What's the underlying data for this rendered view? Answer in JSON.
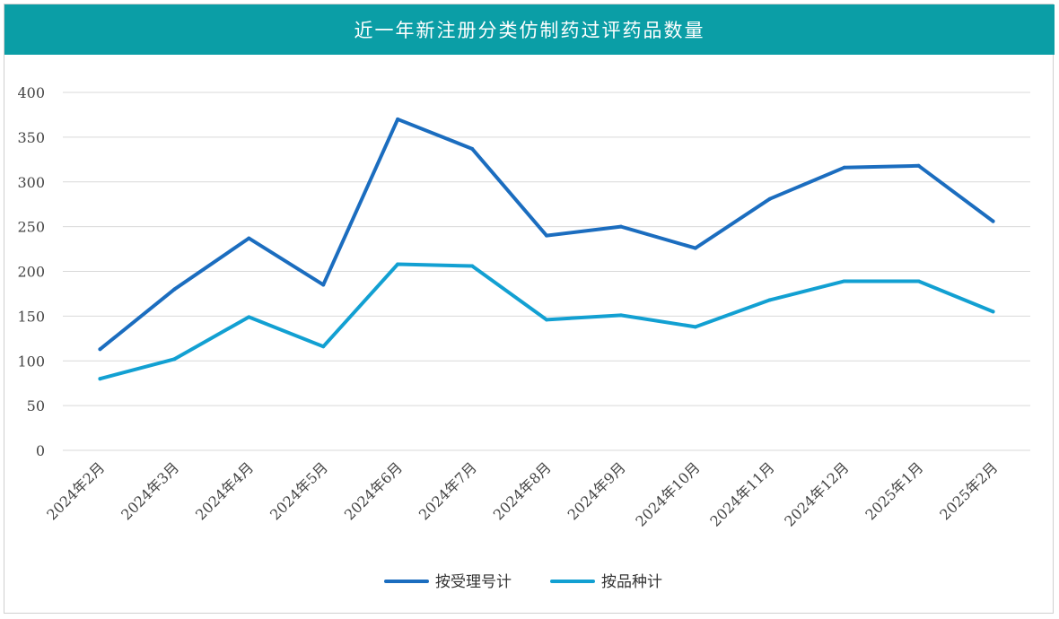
{
  "title": "近一年新注册分类仿制药过评药品数量",
  "chart_data": {
    "type": "line",
    "title": "近一年新注册分类仿制药过评药品数量",
    "categories": [
      "2024年2月",
      "2024年3月",
      "2024年4月",
      "2024年5月",
      "2024年6月",
      "2024年7月",
      "2024年8月",
      "2024年9月",
      "2024年10月",
      "2024年11月",
      "2024年12月",
      "2025年1月",
      "2025年2月"
    ],
    "series": [
      {
        "name": "按受理号计",
        "color": "#1b6dbf",
        "values": [
          113,
          180,
          237,
          185,
          370,
          337,
          240,
          250,
          226,
          281,
          316,
          318,
          256
        ]
      },
      {
        "name": "按品种计",
        "color": "#12a0d2",
        "values": [
          80,
          102,
          149,
          116,
          208,
          206,
          146,
          151,
          138,
          168,
          189,
          189,
          155
        ]
      }
    ],
    "ylim": [
      0,
      400
    ],
    "yticks": [
      0,
      50,
      100,
      150,
      200,
      250,
      300,
      350,
      400
    ],
    "grid": true,
    "legend": "bottom-center"
  }
}
